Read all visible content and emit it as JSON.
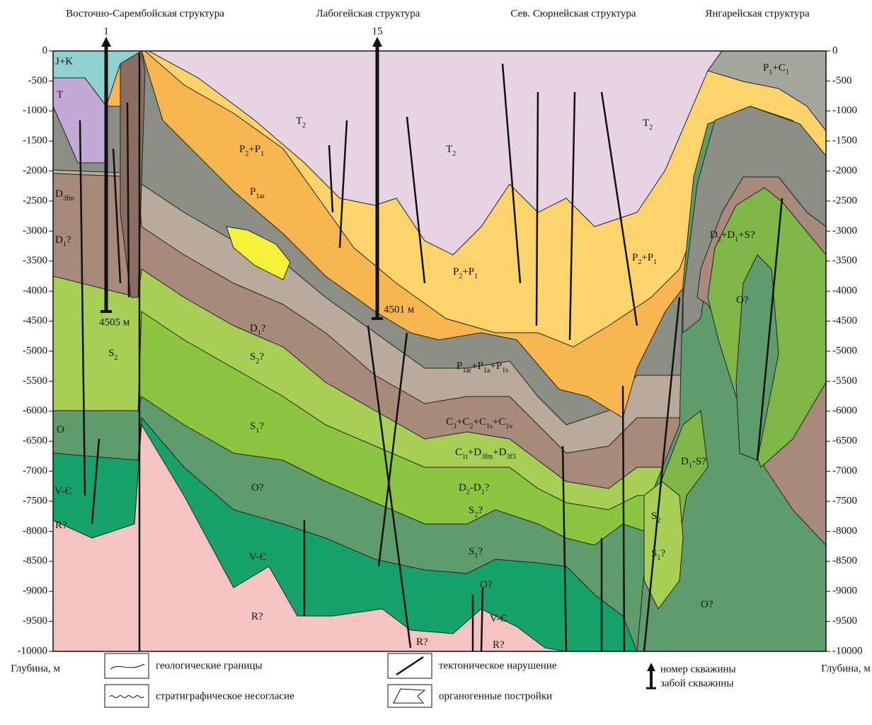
{
  "structures": [
    "Восточно-Сарембойская структура",
    "Лабогейская структура",
    "Сев. Сюрнейская структура",
    "Янгарейская структура"
  ],
  "wells": [
    {
      "number": "1",
      "bottom": "4505 м"
    },
    {
      "number": "15",
      "bottom": "4501 м"
    }
  ],
  "axis": {
    "left_label": "Глубина, м",
    "right_label": "Глубина, м",
    "depth_ticks": [
      0,
      -500,
      -1000,
      -1500,
      -2000,
      -2500,
      -3000,
      -3500,
      -4000,
      -4500,
      -5000,
      -5500,
      -6000,
      -6500,
      -7000,
      -7500,
      -8000,
      -8500,
      -9000,
      -9500,
      -10000
    ]
  },
  "layer_labels": [
    {
      "parts": [
        "J+K"
      ]
    },
    {
      "parts": [
        "T"
      ]
    },
    {
      "parts": [
        "D",
        "3fm"
      ]
    },
    {
      "parts": [
        "D",
        "1",
        "?"
      ]
    },
    {
      "parts": [
        "S",
        "2"
      ]
    },
    {
      "parts": [
        "O"
      ]
    },
    {
      "parts": [
        "V-Є"
      ]
    },
    {
      "parts": [
        "R?"
      ]
    },
    {
      "parts": [
        "T",
        "2"
      ]
    },
    {
      "parts": [
        "T",
        "2"
      ]
    },
    {
      "parts": [
        "T",
        "2"
      ]
    },
    {
      "parts": [
        "P",
        "2",
        "+P",
        "1"
      ]
    },
    {
      "parts": [
        "P",
        "1ar"
      ]
    },
    {
      "parts": [
        "P",
        "2",
        "+P",
        "1"
      ]
    },
    {
      "parts": [
        "P",
        "2",
        "+P",
        "1"
      ]
    },
    {
      "parts": [
        "D",
        "1",
        "?"
      ]
    },
    {
      "parts": [
        "S",
        "2",
        "?"
      ]
    },
    {
      "parts": [
        "S",
        "1",
        "?"
      ]
    },
    {
      "parts": [
        "O?"
      ]
    },
    {
      "parts": [
        "V-Є"
      ]
    },
    {
      "parts": [
        "R?"
      ]
    },
    {
      "parts": [
        "P",
        "1ar",
        "+P",
        "1a",
        "+P",
        "1s"
      ]
    },
    {
      "parts": [
        "C",
        "3",
        "+C",
        "2",
        "+C",
        "1s",
        "+C",
        "1v"
      ]
    },
    {
      "parts": [
        "C",
        "1t",
        "+D",
        "3fm",
        "+D",
        "3f3"
      ]
    },
    {
      "parts": [
        "D",
        "2",
        "-D",
        "1",
        "?"
      ]
    },
    {
      "parts": [
        "S",
        "2",
        "?"
      ]
    },
    {
      "parts": [
        "S",
        "1",
        "?"
      ]
    },
    {
      "parts": [
        "O?"
      ]
    },
    {
      "parts": [
        "V-Є"
      ]
    },
    {
      "parts": [
        "R?"
      ]
    },
    {
      "parts": [
        "R?"
      ]
    },
    {
      "parts": [
        "P",
        "1",
        "+C",
        "1"
      ]
    },
    {
      "parts": [
        "D",
        "2",
        "+D",
        "1",
        "+S?"
      ]
    },
    {
      "parts": [
        "O?"
      ]
    },
    {
      "parts": [
        "D",
        "1",
        "-S?"
      ]
    },
    {
      "parts": [
        "S",
        "2"
      ]
    },
    {
      "parts": [
        "S",
        "1",
        "?"
      ]
    },
    {
      "parts": [
        "O?"
      ]
    }
  ],
  "legend": {
    "items": [
      "геологические границы",
      "стратиграфическое несогласие",
      "тектоническое нарушение",
      "органогенные постройки"
    ],
    "well_lines": [
      "номер скважины",
      "забой скважины"
    ]
  }
}
